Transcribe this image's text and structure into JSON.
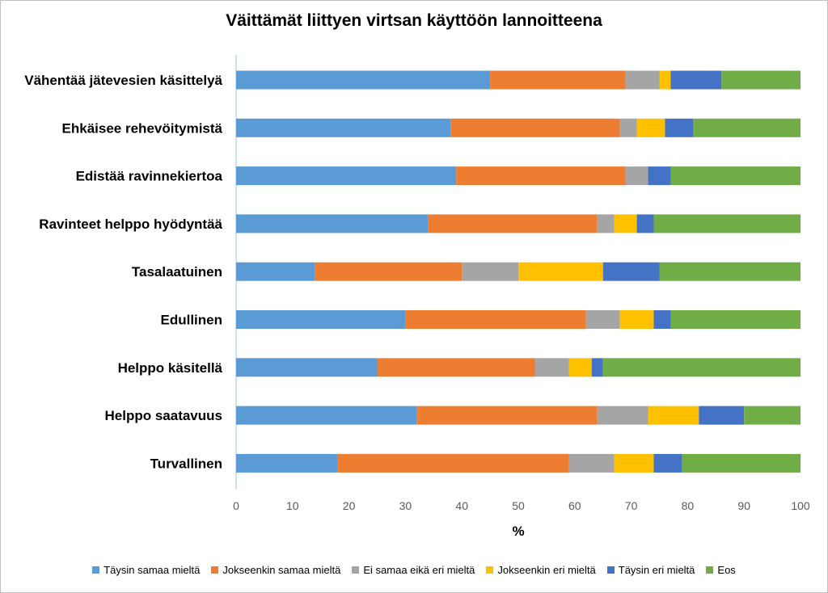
{
  "chart_data": {
    "type": "bar",
    "orientation": "horizontal",
    "stacked": true,
    "title": "Väittämät liittyen virtsan käyttöön lannoitteena",
    "xlabel": "%",
    "ylabel": "",
    "xlim": [
      0,
      100
    ],
    "x_ticks": [
      "0",
      "10",
      "20",
      "30",
      "40",
      "50",
      "60",
      "70",
      "80",
      "90",
      "100"
    ],
    "grid": false,
    "legend_position": "bottom",
    "categories": [
      "Vähentää jätevesien käsittelyä",
      "Ehkäisee rehevöitymistä",
      "Edistää ravinnekiertoa",
      "Ravinteet helppo hyödyntää",
      "Tasalaatuinen",
      "Edullinen",
      "Helppo käsitellä",
      "Helppo saatavuus",
      "Turvallinen"
    ],
    "series": [
      {
        "name": "Täysin samaa mieltä",
        "color": "#5B9BD5",
        "values": [
          45,
          38,
          39,
          34,
          14,
          30,
          25,
          32,
          18
        ]
      },
      {
        "name": "Jokseenkin samaa mieltä",
        "color": "#ED7D31",
        "values": [
          24,
          30,
          30,
          30,
          26,
          32,
          28,
          32,
          41
        ]
      },
      {
        "name": "Ei samaa eikä eri mieltä",
        "color": "#A5A5A5",
        "values": [
          6,
          3,
          4,
          3,
          10,
          6,
          6,
          9,
          8
        ]
      },
      {
        "name": "Jokseenkin eri mieltä",
        "color": "#FFC000",
        "values": [
          2,
          5,
          0,
          4,
          15,
          6,
          4,
          9,
          7
        ]
      },
      {
        "name": "Täysin eri mieltä",
        "color": "#4472C4",
        "values": [
          9,
          5,
          4,
          3,
          10,
          3,
          2,
          8,
          5
        ]
      },
      {
        "name": "Eos",
        "color": "#70AD47",
        "values": [
          14,
          19,
          23,
          26,
          25,
          23,
          35,
          10,
          21
        ]
      }
    ]
  }
}
